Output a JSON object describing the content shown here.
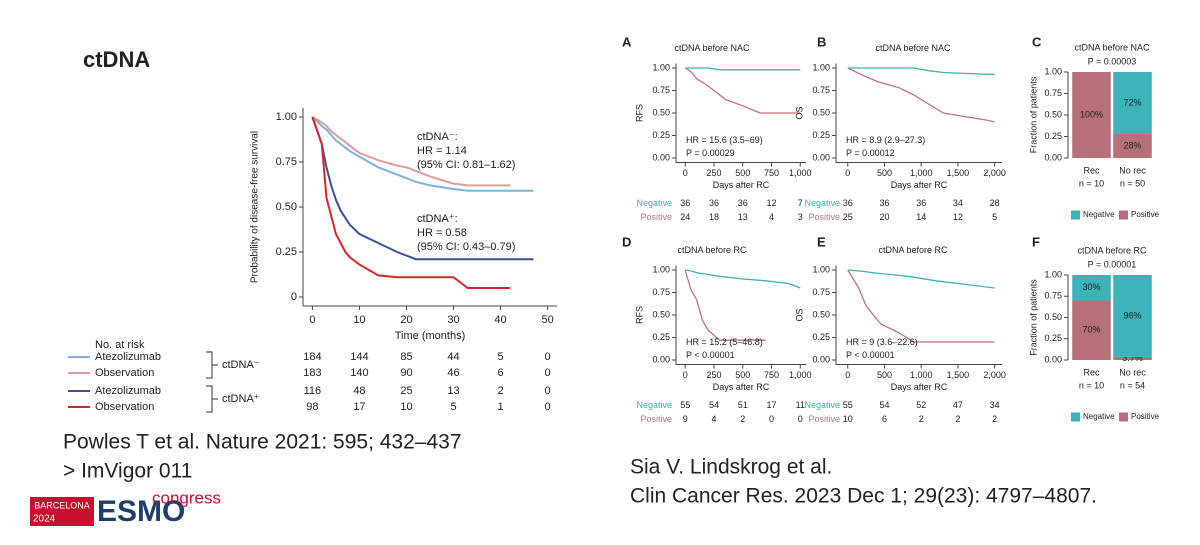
{
  "slide": {
    "title": "ctDNA",
    "left_citation": [
      "Powles T et al. Nature 2021: 595; 432–437",
      ">  ImVigor 011"
    ],
    "right_citation": [
      "Sia V. Lindskrog et al.",
      "Clin Cancer Res. 2023 Dec 1; 29(23): 4797–4807."
    ],
    "logo": {
      "city": "BARCELONA",
      "year": "2024",
      "brand": "ESMO",
      "word": "congress"
    }
  },
  "chart_data": [
    {
      "type": "km",
      "xlabel": "Time (months)",
      "ylabel": "Probability of disease-free survival",
      "xlim": [
        -2,
        52
      ],
      "ylim": [
        -0.05,
        1.05
      ],
      "xticks": [
        0,
        10,
        20,
        30,
        40,
        50
      ],
      "yticks": [
        0,
        0.25,
        {
          "value": 0.5,
          "label": "0.50"
        },
        0.75,
        {
          "value": 1,
          "label": "1.00"
        }
      ],
      "annotations": [
        "ctDNA⁻:",
        "HR = 1.14",
        "(95% CI: 0.81–1.62)",
        "ctDNA⁺:",
        "HR = 0.58",
        "(95% CI: 0.43–0.79)"
      ],
      "risk_title": "No. at risk",
      "groups": [
        "ctDNA⁻",
        "ctDNA⁺"
      ],
      "x": [
        0,
        2,
        3,
        4,
        5,
        6,
        7,
        8,
        10,
        14,
        18,
        20,
        22,
        25,
        30,
        33,
        35,
        42,
        47
      ],
      "series": [
        {
          "name": "Atezolizumab",
          "color": "#7fb2dc",
          "values": [
            1,
            0.95,
            0.93,
            0.9,
            0.87,
            0.85,
            0.83,
            0.81,
            0.78,
            0.72,
            0.68,
            0.66,
            0.64,
            0.62,
            0.6,
            0.59,
            0.59,
            0.59,
            0.59
          ],
          "at_risk": [
            184,
            144,
            85,
            44,
            5,
            0
          ]
        },
        {
          "name": "Observation",
          "color": "#e39a9a",
          "values": [
            1,
            0.97,
            0.95,
            0.92,
            0.9,
            0.88,
            0.86,
            0.84,
            0.8,
            0.76,
            0.73,
            0.72,
            0.7,
            0.67,
            0.63,
            0.62,
            0.62,
            0.62,
            null
          ],
          "at_risk": [
            183,
            140,
            90,
            46,
            6,
            0
          ]
        },
        {
          "name": "Atezolizumab",
          "color": "#3d4f9f",
          "values": [
            1,
            0.85,
            0.72,
            0.62,
            0.54,
            0.48,
            0.44,
            0.4,
            0.35,
            0.3,
            0.25,
            0.23,
            0.21,
            0.21,
            0.21,
            0.21,
            0.21,
            0.21,
            0.21
          ],
          "at_risk": [
            116,
            48,
            25,
            13,
            2,
            0
          ]
        },
        {
          "name": "Observation",
          "color": "#d7262b",
          "values": [
            1,
            0.85,
            0.55,
            0.45,
            0.35,
            0.3,
            0.25,
            0.22,
            0.18,
            0.12,
            0.11,
            0.11,
            0.11,
            0.11,
            0.11,
            0.05,
            0.05,
            0.05,
            null
          ],
          "at_risk": [
            98,
            17,
            10,
            5,
            1,
            0
          ]
        }
      ]
    },
    {
      "type": "km",
      "panel": "A",
      "title": "ctDNA before NAC",
      "xlabel": "Days after RC",
      "ylabel": "RFS",
      "xlim": [
        -80,
        1050
      ],
      "ylim": [
        -0.05,
        1.05
      ],
      "xticks": [
        0,
        250,
        500,
        750,
        {
          "value": 1000,
          "label": "1,000"
        }
      ],
      "yticks": [
        {
          "value": 0,
          "label": "0.00"
        },
        0.25,
        {
          "value": 0.5,
          "label": "0.50"
        },
        0.75,
        {
          "value": 1,
          "label": "1.00"
        }
      ],
      "annotations": [
        "HR = 15.6 (3.5–69)",
        "P = 0.00029"
      ],
      "x": [
        0,
        50,
        100,
        200,
        300,
        350,
        500,
        650,
        800,
        1000
      ],
      "series": [
        {
          "name": "Negative",
          "color": "#3bb3b8",
          "values": [
            1,
            1,
            1,
            1,
            0.98,
            0.98,
            0.98,
            0.98,
            0.98,
            0.98
          ],
          "at_risk": [
            36,
            36,
            36,
            12,
            7
          ]
        },
        {
          "name": "Positive",
          "color": "#c0737a",
          "values": [
            1,
            0.96,
            0.88,
            0.8,
            0.7,
            0.65,
            0.58,
            0.5,
            0.5,
            0.5
          ],
          "at_risk": [
            24,
            18,
            13,
            4,
            3
          ]
        }
      ]
    },
    {
      "type": "km",
      "panel": "B",
      "title": "ctDNA before NAC",
      "xlabel": "Days after RC",
      "ylabel": "OS",
      "xlim": [
        -160,
        2100
      ],
      "ylim": [
        -0.05,
        1.05
      ],
      "xticks": [
        0,
        500,
        {
          "value": 1000,
          "label": "1,000"
        },
        {
          "value": 1500,
          "label": "1,500"
        },
        {
          "value": 2000,
          "label": "2,000"
        }
      ],
      "yticks": [
        {
          "value": 0,
          "label": "0.00"
        },
        0.25,
        {
          "value": 0.5,
          "label": "0.50"
        },
        0.75,
        {
          "value": 1,
          "label": "1.00"
        }
      ],
      "annotations": [
        "HR = 8.9 (2.9–27.3)",
        "P = 0.00012"
      ],
      "x": [
        0,
        200,
        400,
        700,
        900,
        1100,
        1300,
        1600,
        1900,
        2000
      ],
      "series": [
        {
          "name": "Negative",
          "color": "#3bb3b8",
          "values": [
            1,
            1,
            1,
            1,
            1,
            0.97,
            0.95,
            0.94,
            0.93,
            0.93
          ],
          "at_risk": [
            36,
            36,
            36,
            34,
            28
          ]
        },
        {
          "name": "Positive",
          "color": "#c0737a",
          "values": [
            1,
            0.92,
            0.85,
            0.78,
            0.7,
            0.6,
            0.5,
            0.46,
            0.42,
            0.4
          ],
          "at_risk": [
            25,
            20,
            14,
            12,
            5
          ]
        }
      ]
    },
    {
      "type": "bar",
      "stacked": true,
      "panel": "C",
      "title": "ctDNA before NAC",
      "annotation": "P = 0.00003",
      "ylabel": "Fraction of patients",
      "ylim": [
        0,
        1
      ],
      "yticks": [
        {
          "value": 0,
          "label": "0.00"
        },
        0.25,
        {
          "value": 0.5,
          "label": "0.50"
        },
        0.75,
        {
          "value": 1,
          "label": "1.00"
        }
      ],
      "categories": [
        "Rec",
        "No rec"
      ],
      "category_notes": [
        "n = 10",
        "n = 50"
      ],
      "series": [
        {
          "name": "Positive",
          "color": "#b5707a",
          "values": [
            1,
            0.28
          ],
          "value_labels": [
            "100%",
            "28%"
          ]
        },
        {
          "name": "Negative",
          "color": "#3bb3b8",
          "values": [
            0,
            0.72
          ],
          "value_labels": [
            null,
            "72%"
          ]
        }
      ]
    },
    {
      "type": "km",
      "panel": "D",
      "title": "ctDNA before RC",
      "xlabel": "Days after RC",
      "ylabel": "RFS",
      "xlim": [
        -80,
        1050
      ],
      "ylim": [
        -0.05,
        1.05
      ],
      "xticks": [
        0,
        250,
        500,
        750,
        {
          "value": 1000,
          "label": "1,000"
        }
      ],
      "yticks": [
        {
          "value": 0,
          "label": "0.00"
        },
        0.25,
        {
          "value": 0.5,
          "label": "0.50"
        },
        0.75,
        {
          "value": 1,
          "label": "1.00"
        }
      ],
      "annotations": [
        "HR = 15.2 (5–46.8)",
        "P < 0.00001"
      ],
      "x": [
        0,
        50,
        100,
        150,
        200,
        300,
        500,
        700,
        900,
        1000
      ],
      "series": [
        {
          "name": "Negative",
          "color": "#3bb3b8",
          "values": [
            1,
            0.99,
            0.97,
            0.96,
            0.95,
            0.93,
            0.9,
            0.88,
            0.85,
            0.8
          ],
          "at_risk": [
            55,
            54,
            51,
            17,
            11
          ]
        },
        {
          "name": "Positive",
          "color": "#c0737a",
          "values": [
            1,
            0.78,
            0.67,
            0.44,
            0.33,
            0.22,
            0.22,
            0.22,
            null,
            null
          ],
          "at_risk": [
            9,
            4,
            2,
            0,
            0
          ]
        }
      ]
    },
    {
      "type": "km",
      "panel": "E",
      "title": "ctDNA before RC",
      "xlabel": "Days after RC",
      "ylabel": "OS",
      "xlim": [
        -160,
        2100
      ],
      "ylim": [
        -0.05,
        1.05
      ],
      "xticks": [
        0,
        500,
        {
          "value": 1000,
          "label": "1,000"
        },
        {
          "value": 1500,
          "label": "1,500"
        },
        {
          "value": 2000,
          "label": "2,000"
        }
      ],
      "yticks": [
        {
          "value": 0,
          "label": "0.00"
        },
        0.25,
        {
          "value": 0.5,
          "label": "0.50"
        },
        0.75,
        {
          "value": 1,
          "label": "1.00"
        }
      ],
      "annotations": [
        "HR = 9 (3.6–22.6)",
        "P < 0.00001"
      ],
      "x": [
        0,
        150,
        250,
        450,
        700,
        900,
        1200,
        1600,
        2000
      ],
      "series": [
        {
          "name": "Negative",
          "color": "#3bb3b8",
          "values": [
            1,
            0.99,
            0.98,
            0.96,
            0.94,
            0.92,
            0.88,
            0.84,
            0.8
          ],
          "at_risk": [
            55,
            54,
            52,
            47,
            34
          ]
        },
        {
          "name": "Positive",
          "color": "#c0737a",
          "values": [
            1,
            0.8,
            0.6,
            0.4,
            0.3,
            0.2,
            0.2,
            0.2,
            0.2
          ],
          "at_risk": [
            10,
            6,
            2,
            2,
            2
          ]
        }
      ]
    },
    {
      "type": "bar",
      "stacked": true,
      "panel": "F",
      "title": "ctDNA before RC",
      "annotation": "P = 0.00001",
      "ylabel": "Fraction of patients",
      "ylim": [
        0,
        1
      ],
      "yticks": [
        {
          "value": 0,
          "label": "0.00"
        },
        0.25,
        {
          "value": 0.5,
          "label": "0.50"
        },
        0.75,
        {
          "value": 1,
          "label": "1.00"
        }
      ],
      "categories": [
        "Rec",
        "No rec"
      ],
      "category_notes": [
        "n = 10",
        "n = 54"
      ],
      "series": [
        {
          "name": "Positive",
          "color": "#b5707a",
          "values": [
            0.7,
            0.037
          ],
          "value_labels": [
            "70%",
            "3.7%"
          ]
        },
        {
          "name": "Negative",
          "color": "#3bb3b8",
          "values": [
            0.3,
            0.963
          ],
          "value_labels": [
            "30%",
            "96%"
          ]
        }
      ]
    }
  ]
}
